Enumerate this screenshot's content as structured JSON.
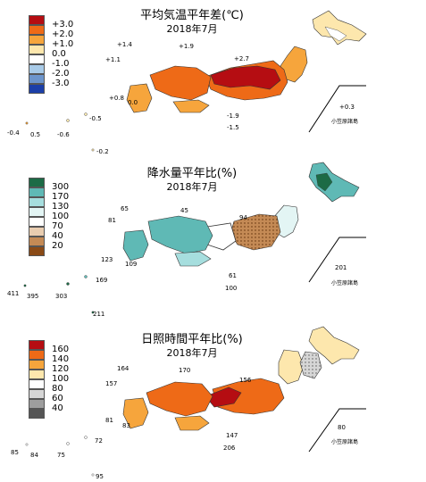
{
  "panels": [
    {
      "id": "temperature",
      "title": "平均気温平年差(℃)",
      "period": "2018年7月",
      "legend": [
        {
          "label": "+3.0",
          "color": "#b50d12"
        },
        {
          "label": "+2.0",
          "color": "#ee6a17"
        },
        {
          "label": "+1.0",
          "color": "#f6a53c"
        },
        {
          "label": "0.0",
          "color": "#fde7ad"
        },
        {
          "label": "-1.0",
          "color": "#ffffff"
        },
        {
          "label": "-2.0",
          "color": "#a9cbe8"
        },
        {
          "label": "-3.0",
          "color": "#6d95cc"
        },
        {
          "label": "",
          "color": "#1c3fa8"
        }
      ],
      "stations": [
        {
          "label": "+1.4"
        },
        {
          "label": "+1.9"
        },
        {
          "label": "+1.1"
        },
        {
          "label": "+2.7"
        },
        {
          "label": "+0.8"
        },
        {
          "label": "0.0"
        },
        {
          "label": "-1.9"
        },
        {
          "label": "-1.5"
        },
        {
          "label": "+0.3"
        },
        {
          "label": "-0.5"
        },
        {
          "label": "-0.4"
        },
        {
          "label": "0.5"
        },
        {
          "label": "-0.6"
        },
        {
          "label": "-0.2"
        }
      ],
      "ogasawara_label": "小笠原諸島"
    },
    {
      "id": "precipitation",
      "title": "降水量平年比(%)",
      "period": "2018年7月",
      "legend": [
        {
          "label": "300",
          "color": "#1c6b46"
        },
        {
          "label": "170",
          "color": "#5fb9b5"
        },
        {
          "label": "130",
          "color": "#a6dede"
        },
        {
          "label": "100",
          "color": "#e3f5f4"
        },
        {
          "label": "70",
          "color": "#ffffff"
        },
        {
          "label": "40",
          "color": "#e9cdb0"
        },
        {
          "label": "20",
          "color": "#c48a55"
        },
        {
          "label": "",
          "color": "#8a4a16"
        }
      ],
      "stations": [
        {
          "label": "65"
        },
        {
          "label": "45"
        },
        {
          "label": "81"
        },
        {
          "label": "94"
        },
        {
          "label": "123"
        },
        {
          "label": "109"
        },
        {
          "label": "61"
        },
        {
          "label": "100"
        },
        {
          "label": "201"
        },
        {
          "label": "169"
        },
        {
          "label": "411"
        },
        {
          "label": "395"
        },
        {
          "label": "303"
        },
        {
          "label": "211"
        }
      ],
      "ogasawara_label": "小笠原諸島"
    },
    {
      "id": "sunshine",
      "title": "日照時間平年比(%)",
      "period": "2018年7月",
      "legend": [
        {
          "label": "160",
          "color": "#b50d12"
        },
        {
          "label": "140",
          "color": "#ee6a17"
        },
        {
          "label": "120",
          "color": "#f6a53c"
        },
        {
          "label": "100",
          "color": "#fde7ad"
        },
        {
          "label": "80",
          "color": "#ffffff"
        },
        {
          "label": "60",
          "color": "#d6d6d6"
        },
        {
          "label": "40",
          "color": "#9e9e9e"
        },
        {
          "label": "",
          "color": "#555555"
        }
      ],
      "stations": [
        {
          "label": "164"
        },
        {
          "label": "170"
        },
        {
          "label": "157"
        },
        {
          "label": "156"
        },
        {
          "label": "81"
        },
        {
          "label": "83"
        },
        {
          "label": "147"
        },
        {
          "label": "206"
        },
        {
          "label": "80"
        },
        {
          "label": "72"
        },
        {
          "label": "85"
        },
        {
          "label": "84"
        },
        {
          "label": "75"
        },
        {
          "label": "95"
        }
      ],
      "ogasawara_label": "小笠原諸島"
    }
  ]
}
